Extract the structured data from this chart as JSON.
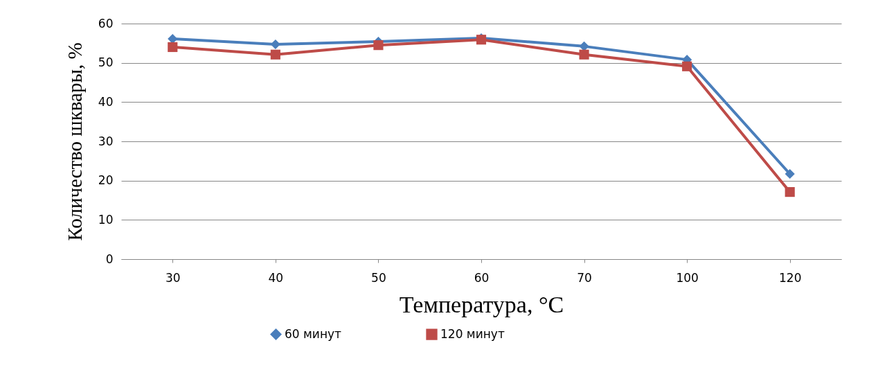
{
  "chart_data": {
    "type": "line",
    "xlabel": "Температура,  °C",
    "ylabel": "Количество шквары, %",
    "categories": [
      "30",
      "40",
      "50",
      "60",
      "70",
      "100",
      "120"
    ],
    "ylim": [
      0,
      60
    ],
    "yticks": [
      0,
      10,
      20,
      30,
      40,
      50,
      60
    ],
    "grid": "y",
    "legend": "bottom",
    "line_style": "solid",
    "series": [
      {
        "name": "60 минут",
        "color": "#4a7ebb",
        "marker": "diamond",
        "values": [
          56.1,
          54.7,
          55.4,
          56.3,
          54.2,
          50.8,
          21.7
        ]
      },
      {
        "name": "120 минут",
        "color": "#be4b48",
        "marker": "square",
        "values": [
          54.0,
          52.1,
          54.5,
          55.9,
          52.1,
          49.1,
          17.1
        ]
      }
    ]
  }
}
